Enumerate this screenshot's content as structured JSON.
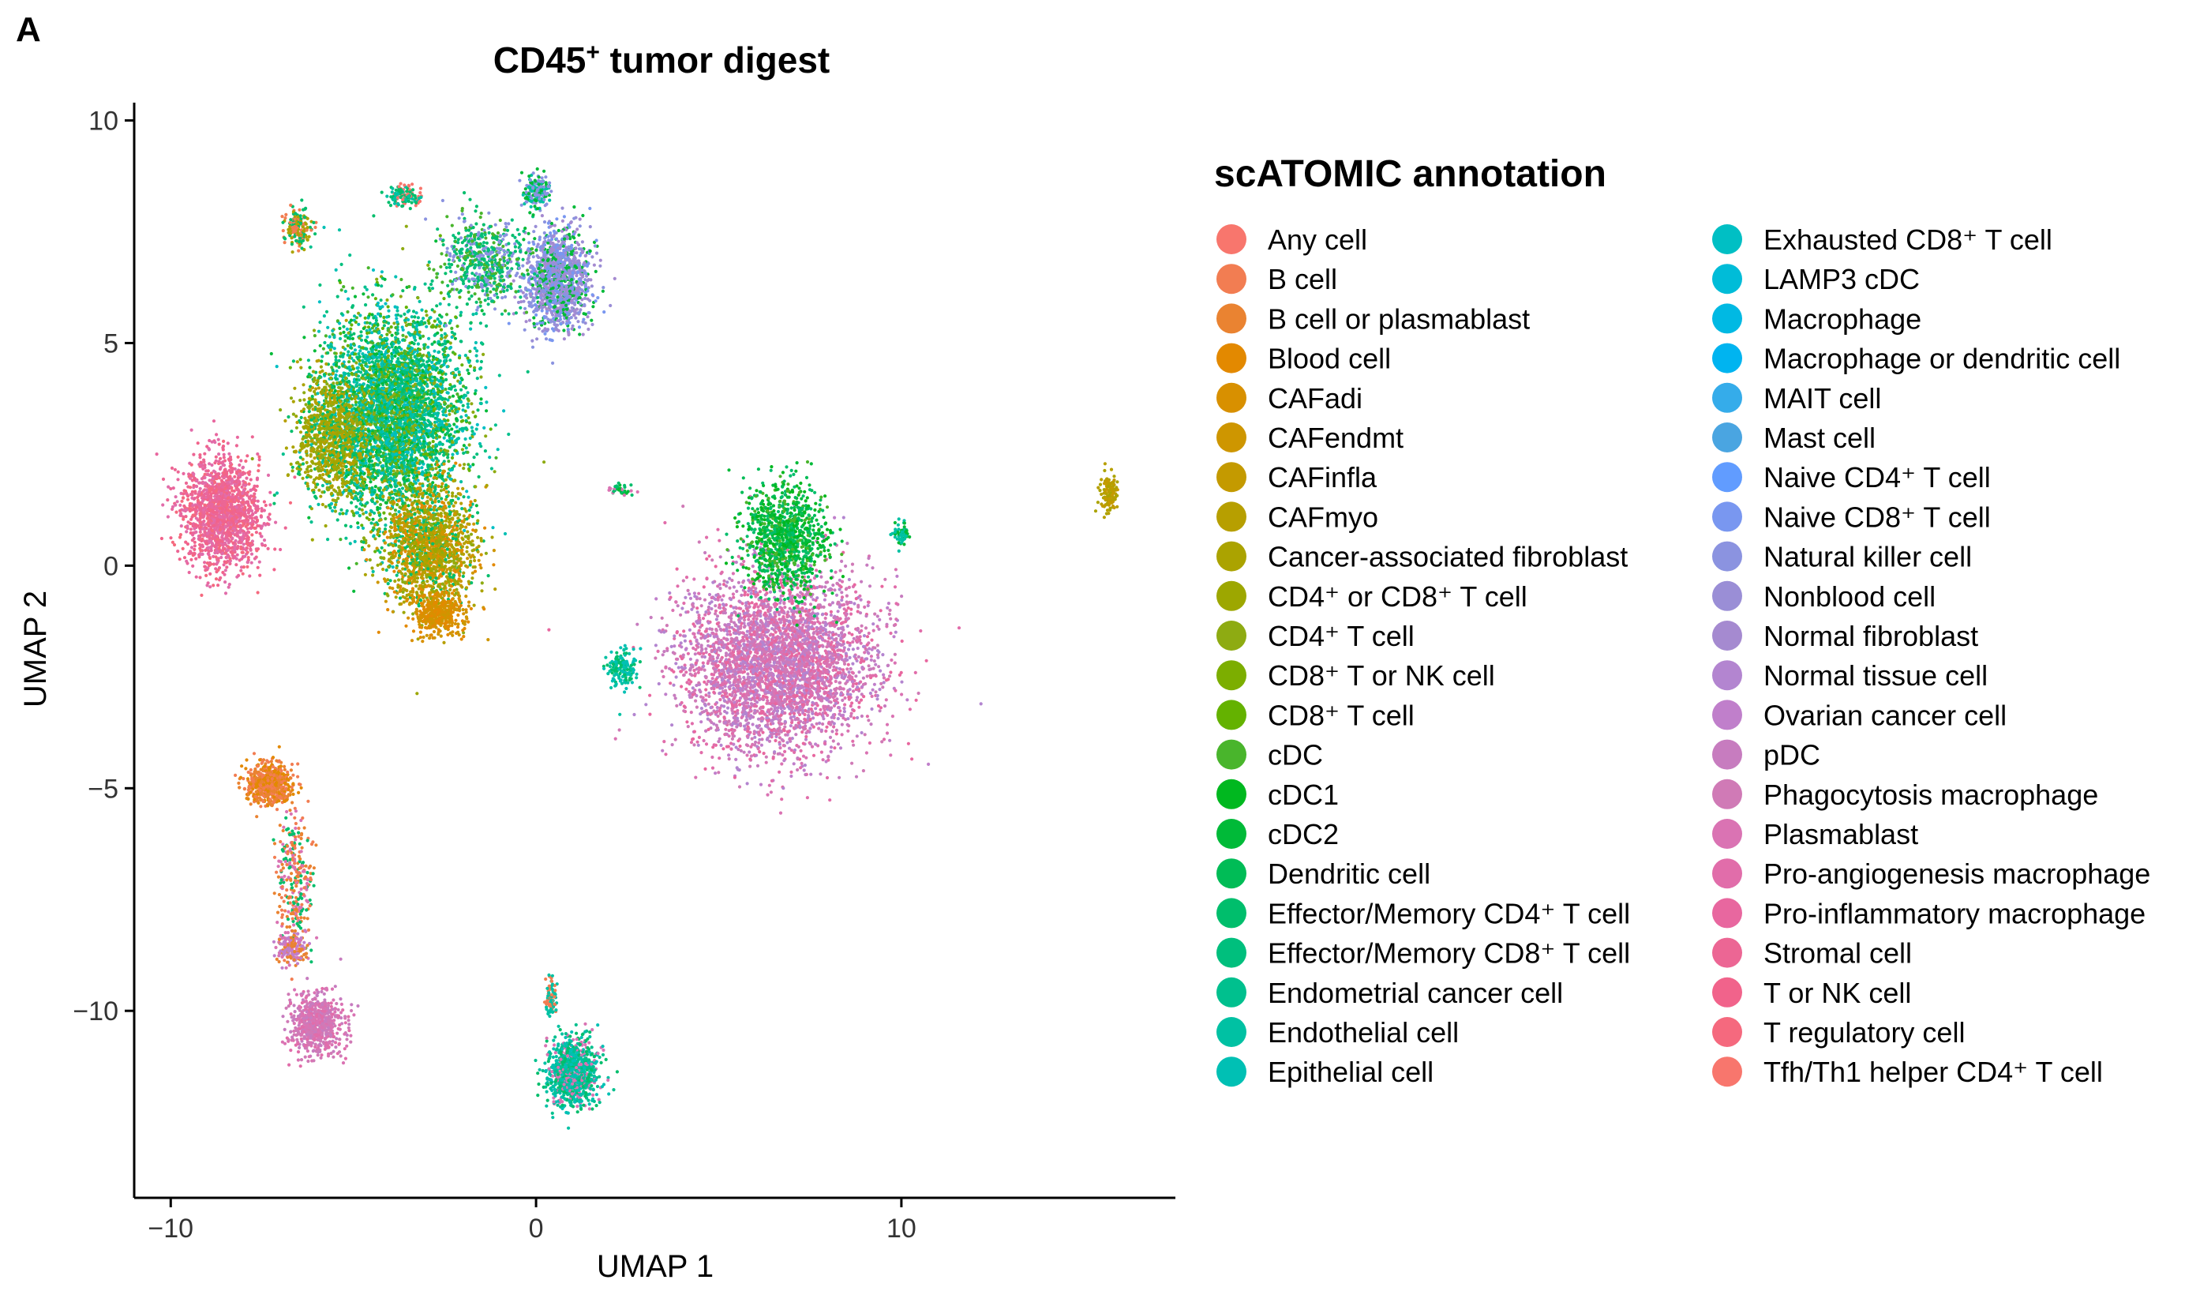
{
  "panel_label": "A",
  "chart_data": {
    "type": "scatter",
    "title": {
      "main": "CD45",
      "sup": "+",
      "rest": " tumor digest"
    },
    "xlabel": "UMAP 1",
    "ylabel": "UMAP 2",
    "xlim": [
      -11,
      17.5
    ],
    "ylim": [
      -14.2,
      10.4
    ],
    "xticks": [
      -10,
      0,
      10
    ],
    "yticks": [
      -10,
      -5,
      0,
      5,
      10
    ],
    "xtick_labels": [
      "−10",
      "0",
      "10"
    ],
    "ytick_labels": [
      "−10",
      "−5",
      "0",
      "5",
      "10"
    ],
    "grid": false,
    "legend": {
      "title": "scATOMIC annotation",
      "placement": "right",
      "columns": 2,
      "entries": [
        {
          "label": "Any cell",
          "color": "#F8766D"
        },
        {
          "label": "B cell",
          "color": "#F27D52"
        },
        {
          "label": "B cell or plasmablast",
          "color": "#EA8331"
        },
        {
          "label": "Blood cell",
          "color": "#E38900"
        },
        {
          "label": "CAFadi",
          "color": "#D89000"
        },
        {
          "label": "CAFendmt",
          "color": "#CE9600"
        },
        {
          "label": "CAFinfla",
          "color": "#C49A00"
        },
        {
          "label": "CAFmyo",
          "color": "#B79F00"
        },
        {
          "label": "Cancer-associated fibroblast",
          "color": "#ABA300"
        },
        {
          "label": "CD4⁺ or CD8⁺ T cell",
          "color": "#9DA700"
        },
        {
          "label": "CD4⁺ T cell",
          "color": "#8EAB12"
        },
        {
          "label": "CD8⁺ T or NK cell",
          "color": "#7CAE00"
        },
        {
          "label": "CD8⁺ T cell",
          "color": "#64B200"
        },
        {
          "label": "cDC",
          "color": "#49B52C"
        },
        {
          "label": "cDC1",
          "color": "#00B81F"
        },
        {
          "label": "cDC2",
          "color": "#00BA38"
        },
        {
          "label": "Dendritic cell",
          "color": "#00BC56"
        },
        {
          "label": "Effector/Memory CD4⁺ T cell",
          "color": "#00BE6C"
        },
        {
          "label": "Effector/Memory CD8⁺ T cell",
          "color": "#00BF7D"
        },
        {
          "label": "Endometrial cancer cell",
          "color": "#00C08E"
        },
        {
          "label": "Endothelial cell",
          "color": "#00C1A3"
        },
        {
          "label": "Epithelial cell",
          "color": "#00C0B4"
        },
        {
          "label": "Exhausted CD8⁺ T cell",
          "color": "#00BFC4"
        },
        {
          "label": "LAMP3 cDC",
          "color": "#00BCD8"
        },
        {
          "label": "Macrophage",
          "color": "#00B9E3"
        },
        {
          "label": "Macrophage or dendritic cell",
          "color": "#00B4F0"
        },
        {
          "label": "MAIT cell",
          "color": "#35ACEA"
        },
        {
          "label": "Mast cell",
          "color": "#4AA5E1"
        },
        {
          "label": "Naive CD4⁺ T cell",
          "color": "#619CFF"
        },
        {
          "label": "Naive CD8⁺ T cell",
          "color": "#7997F0"
        },
        {
          "label": "Natural killer cell",
          "color": "#8B93E0"
        },
        {
          "label": "Nonblood cell",
          "color": "#9A8ED6"
        },
        {
          "label": "Normal fibroblast",
          "color": "#A58AD0"
        },
        {
          "label": "Normal tissue cell",
          "color": "#B385D0"
        },
        {
          "label": "Ovarian cancer cell",
          "color": "#C07FCB"
        },
        {
          "label": "pDC",
          "color": "#C77CBF"
        },
        {
          "label": "Phagocytosis macrophage",
          "color": "#D07AB6"
        },
        {
          "label": "Plasmablast",
          "color": "#DA73B3"
        },
        {
          "label": "Pro-angiogenesis macrophage",
          "color": "#E16DAA"
        },
        {
          "label": "Pro-inflammatory macrophage",
          "color": "#E8679F"
        },
        {
          "label": "Stromal cell",
          "color": "#EC6694"
        },
        {
          "label": "T or NK cell",
          "color": "#F1638B"
        },
        {
          "label": "T regulatory cell",
          "color": "#F5697E"
        },
        {
          "label": "Tfh/Th1 helper CD4⁺ T cell",
          "color": "#F8766D"
        }
      ]
    },
    "clusters": [
      {
        "name": "t-cell-main",
        "center": [
          -3.9,
          3.4
        ],
        "spread": [
          1.55,
          1.9
        ],
        "n": 4200,
        "colors": [
          "#00BE6C",
          "#00BF7D",
          "#00C08E",
          "#00C1A3",
          "#00C0B4",
          "#00BA38",
          "#64B200",
          "#8EAB12",
          "#49B52C",
          "#00BFC4"
        ]
      },
      {
        "name": "t-cell-lower",
        "center": [
          -2.9,
          0.4
        ],
        "spread": [
          1.0,
          1.1
        ],
        "n": 1500,
        "colors": [
          "#CE9600",
          "#B79F00",
          "#ABA300",
          "#9DA700",
          "#E38900",
          "#00BE6C",
          "#8EAB12"
        ]
      },
      {
        "name": "t-cell-left-lobe",
        "center": [
          -5.6,
          2.9
        ],
        "spread": [
          0.75,
          1.1
        ],
        "n": 900,
        "colors": [
          "#ABA300",
          "#9DA700",
          "#8EAB12",
          "#B79F00",
          "#00BE6C"
        ]
      },
      {
        "name": "t-cell-bottom-tip",
        "center": [
          -2.7,
          -1.1
        ],
        "spread": [
          0.5,
          0.35
        ],
        "n": 400,
        "colors": [
          "#E38900",
          "#D89000",
          "#CE9600"
        ]
      },
      {
        "name": "nk-cluster",
        "center": [
          0.6,
          6.4
        ],
        "spread": [
          0.7,
          0.9
        ],
        "n": 1300,
        "colors": [
          "#8B93E0",
          "#7997F0",
          "#9A8ED6",
          "#00BA38",
          "#A58AD0"
        ]
      },
      {
        "name": "upper-bridge",
        "center": [
          -1.4,
          6.8
        ],
        "spread": [
          0.9,
          0.8
        ],
        "n": 600,
        "colors": [
          "#00BE6C",
          "#00BF7D",
          "#49B52C",
          "#8B93E0"
        ]
      },
      {
        "name": "top-small",
        "center": [
          0.0,
          8.4
        ],
        "spread": [
          0.3,
          0.3
        ],
        "n": 180,
        "colors": [
          "#00C1A3",
          "#00BA38",
          "#8B93E0"
        ]
      },
      {
        "name": "top-left-small",
        "center": [
          -6.5,
          7.6
        ],
        "spread": [
          0.3,
          0.35
        ],
        "n": 160,
        "colors": [
          "#F27D52",
          "#ABA300",
          "#00BE6C"
        ]
      },
      {
        "name": "top-mid-small",
        "center": [
          -3.6,
          8.3
        ],
        "spread": [
          0.4,
          0.2
        ],
        "n": 120,
        "colors": [
          "#00C1A3",
          "#00BE6C",
          "#F8766D"
        ]
      },
      {
        "name": "pink-left",
        "center": [
          -8.6,
          1.2
        ],
        "spread": [
          0.85,
          1.0
        ],
        "n": 1500,
        "colors": [
          "#F1638B",
          "#EC6694",
          "#E8679F",
          "#F5697E",
          "#E16DAA"
        ]
      },
      {
        "name": "myeloid-main",
        "center": [
          6.6,
          -2.2
        ],
        "spread": [
          2.1,
          1.6
        ],
        "n": 3800,
        "colors": [
          "#DA73B3",
          "#E16DAA",
          "#D07AB6",
          "#C07FCB",
          "#C77CBF",
          "#B385D0",
          "#E8679F"
        ]
      },
      {
        "name": "myeloid-green-top",
        "center": [
          6.8,
          0.6
        ],
        "spread": [
          0.9,
          1.0
        ],
        "n": 1000,
        "colors": [
          "#00BA38",
          "#00B81F",
          "#00BC56",
          "#49B52C",
          "#00BE6C"
        ]
      },
      {
        "name": "myeloid-left-tip",
        "center": [
          2.4,
          -2.3
        ],
        "spread": [
          0.3,
          0.35
        ],
        "n": 150,
        "colors": [
          "#00C0B4",
          "#00C1A3",
          "#00BE6C"
        ]
      },
      {
        "name": "myeloid-right-top",
        "center": [
          10.0,
          0.7
        ],
        "spread": [
          0.2,
          0.2
        ],
        "n": 60,
        "colors": [
          "#00C1A3",
          "#00BA38"
        ]
      },
      {
        "name": "bcell-orange",
        "center": [
          -7.3,
          -4.9
        ],
        "spread": [
          0.5,
          0.35
        ],
        "n": 650,
        "colors": [
          "#EA8331",
          "#F27D52",
          "#E38900"
        ]
      },
      {
        "name": "bcell-stream",
        "center": [
          -6.6,
          -7.1
        ],
        "spread": [
          0.4,
          1.2
        ],
        "n": 300,
        "colors": [
          "#EA8331",
          "#F27D52",
          "#00BE6C",
          "#DA73B3"
        ]
      },
      {
        "name": "plasma-cluster",
        "center": [
          -6.0,
          -10.3
        ],
        "spread": [
          0.55,
          0.55
        ],
        "n": 650,
        "colors": [
          "#DA73B3",
          "#E16DAA",
          "#C77CBF",
          "#D07AB6"
        ]
      },
      {
        "name": "plasma-upper",
        "center": [
          -6.7,
          -8.6
        ],
        "spread": [
          0.3,
          0.3
        ],
        "n": 160,
        "colors": [
          "#DA73B3",
          "#C07FCB",
          "#EA8331"
        ]
      },
      {
        "name": "bottom-teal",
        "center": [
          1.0,
          -11.4
        ],
        "spread": [
          0.55,
          0.6
        ],
        "n": 1000,
        "colors": [
          "#00C1A3",
          "#00C0B4",
          "#00C08E",
          "#DA73B3",
          "#00BE6C"
        ]
      },
      {
        "name": "bottom-teal-neck",
        "center": [
          0.4,
          -9.7
        ],
        "spread": [
          0.12,
          0.35
        ],
        "n": 90,
        "colors": [
          "#00C1A3",
          "#F27D52"
        ]
      },
      {
        "name": "right-olive",
        "center": [
          15.7,
          1.6
        ],
        "spread": [
          0.2,
          0.35
        ],
        "n": 120,
        "colors": [
          "#B79F00",
          "#ABA300",
          "#C49A00"
        ]
      },
      {
        "name": "mid-small",
        "center": [
          2.3,
          1.7
        ],
        "spread": [
          0.3,
          0.12
        ],
        "n": 40,
        "colors": [
          "#DA73B3",
          "#00BE6C",
          "#00BA38"
        ]
      }
    ]
  }
}
